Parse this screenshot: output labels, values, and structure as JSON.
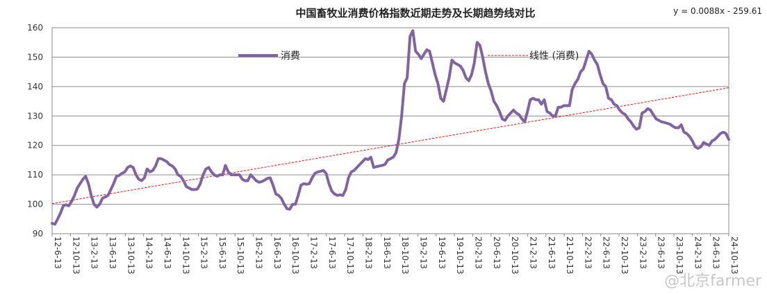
{
  "chart_data": {
    "type": "line",
    "title": "中国畜牧业消费价格指数近期走势及长期趋势线对比",
    "trendline_equation": "y = 0.0088x - 259.61",
    "xlabel": "",
    "ylabel": "",
    "ylim": [
      90,
      160
    ],
    "yticks": [
      90,
      100,
      110,
      120,
      130,
      140,
      150,
      160
    ],
    "grid": "horizontal",
    "legend_position": "top-center",
    "x_tick_labels": [
      "12-6-13",
      "12-10-13",
      "13-2-13",
      "13-6-13",
      "13-10-13",
      "14-2-13",
      "14-6-13",
      "14-10-13",
      "15-2-13",
      "15-6-13",
      "15-10-13",
      "16-2-13",
      "16-6-13",
      "16-10-13",
      "17-2-13",
      "17-6-13",
      "17-10-13",
      "18-2-13",
      "18-6-13",
      "18-10-13",
      "19-2-13",
      "19-6-13",
      "19-10-13",
      "20-2-13",
      "20-6-13",
      "20-10-13",
      "21-2-13",
      "21-6-13",
      "21-10-13",
      "22-2-13",
      "22-6-13",
      "22-10-13",
      "23-2-13",
      "23-6-13",
      "23-10-13",
      "24-2-13",
      "24-6-13",
      "24-10-13"
    ],
    "series": [
      {
        "name": "消费",
        "style": "solid",
        "color": "#8064A2",
        "values": [
          93.5,
          93.2,
          95,
          97,
          99.5,
          99.8,
          99.5,
          101,
          103,
          105.5,
          107,
          108.5,
          109.5,
          107,
          103,
          100,
          99,
          100,
          102,
          102.5,
          103,
          105,
          107,
          109.5,
          109.8,
          110.5,
          111,
          112.5,
          113,
          112.5,
          110,
          108.5,
          108,
          109,
          112,
          111,
          111.5,
          113,
          115.5,
          115.5,
          115,
          114.5,
          113.5,
          113,
          112,
          110,
          109.5,
          108,
          106,
          105.5,
          105,
          105,
          105.2,
          107,
          110,
          112,
          112.5,
          111,
          110,
          109.5,
          110,
          110,
          113.2,
          111,
          110,
          110,
          110,
          110,
          108.5,
          108,
          108,
          110,
          109,
          108,
          107.5,
          107.7,
          108.2,
          108.8,
          109,
          106.5,
          103.5,
          103,
          102,
          100,
          98.5,
          98.3,
          100,
          100,
          103,
          106.5,
          107,
          106.8,
          107,
          109,
          110.5,
          111,
          111.2,
          111.5,
          110.5,
          107,
          104.5,
          103.5,
          103,
          103.2,
          103,
          105,
          109,
          111,
          111.5,
          112.5,
          113.5,
          114.5,
          115.5,
          115.2,
          116,
          112.5,
          112.8,
          113,
          113.2,
          113.5,
          115,
          115.5,
          116,
          117.5,
          122,
          130,
          141,
          143,
          157,
          159,
          152,
          151,
          149.5,
          151,
          152.5,
          152,
          148,
          144,
          141,
          136,
          135,
          139,
          143,
          149,
          148,
          147.5,
          147,
          145.5,
          143,
          142,
          144,
          148,
          155,
          154,
          150,
          145,
          141,
          138.5,
          135,
          133.5,
          131.5,
          129,
          128.5,
          130,
          131,
          132,
          131,
          130.5,
          129,
          128,
          131.5,
          135.5,
          136,
          135.5,
          135.5,
          134,
          135.5,
          131.5,
          131,
          130,
          130,
          133,
          133,
          133.5,
          133.5,
          133.5,
          139,
          141,
          142.5,
          145,
          146,
          149,
          152,
          151,
          149,
          147.5,
          144,
          141,
          140,
          136,
          135.5,
          134,
          133.5,
          132,
          131,
          130.5,
          129,
          128,
          126.5,
          125.5,
          126,
          131,
          131.5,
          132.5,
          132,
          130.5,
          129,
          128.5,
          128,
          127.8,
          127.5,
          127.2,
          126.5,
          126,
          126,
          127,
          124.5,
          124,
          123,
          121.5,
          119.5,
          119,
          119.5,
          121,
          120.5,
          120,
          121.5,
          122,
          123,
          124,
          124.5,
          124,
          122
        ]
      },
      {
        "name": "线性 (消费)",
        "style": "dashed",
        "color": "#FF0000",
        "values": [
          100.2,
          139.6
        ]
      }
    ]
  },
  "watermark": "@北京farmer"
}
